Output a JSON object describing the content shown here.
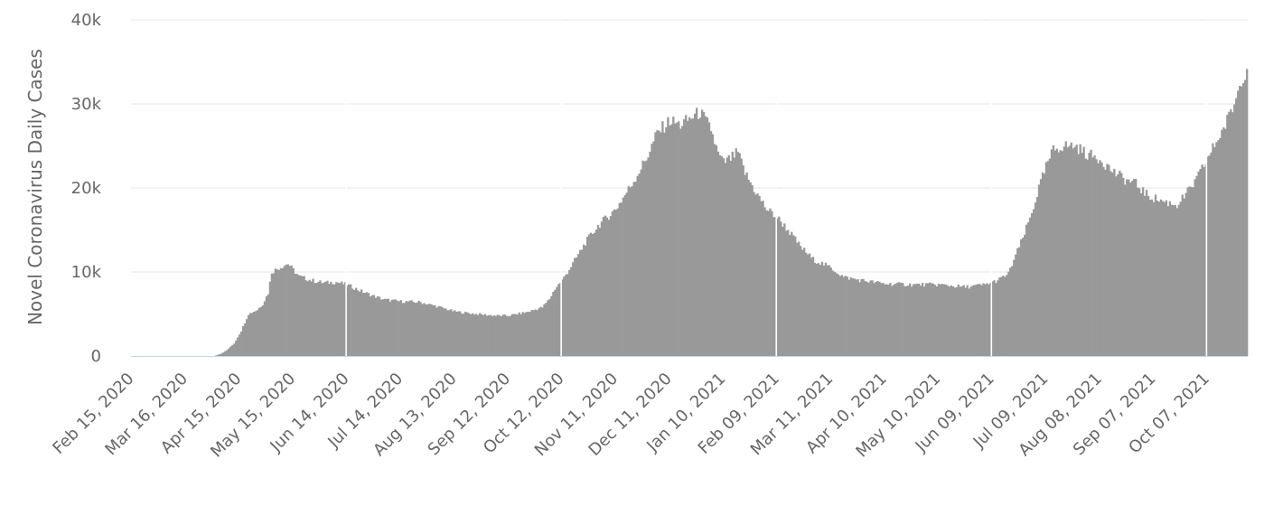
{
  "chart_data": {
    "type": "bar",
    "title": "",
    "xlabel": "",
    "ylabel": "Novel Coronavirus Daily Cases",
    "ylim": [
      0,
      40000
    ],
    "yticks": [
      {
        "value": 0,
        "label": "0"
      },
      {
        "value": 10000,
        "label": "10k"
      },
      {
        "value": 20000,
        "label": "20k"
      },
      {
        "value": 30000,
        "label": "30k"
      },
      {
        "value": 40000,
        "label": "40k"
      }
    ],
    "grid": true,
    "bar_color": "#999999",
    "gridline_color": "#e6e6e6",
    "axis_color": "#ccd6eb",
    "x_start": "2020-02-15",
    "x_end": "2021-10-29",
    "xticks": [
      "Feb 15, 2020",
      "Mar 16, 2020",
      "Apr 15, 2020",
      "May 15, 2020",
      "Jun 14, 2020",
      "Jul 14, 2020",
      "Aug 13, 2020",
      "Sep 12, 2020",
      "Oct 12, 2020",
      "Nov 11, 2020",
      "Dec 11, 2020",
      "Jan 10, 2021",
      "Feb 09, 2021",
      "Mar 11, 2021",
      "Apr 10, 2021",
      "May 10, 2021",
      "Jun 09, 2021",
      "Jul 09, 2021",
      "Aug 08, 2021",
      "Sep 07, 2021",
      "Oct 07, 2021"
    ],
    "series": [
      {
        "points": [
          [
            "2020-02-15",
            0
          ],
          [
            "2020-03-16",
            0
          ],
          [
            "2020-04-01",
            0
          ],
          [
            "2020-04-05",
            300
          ],
          [
            "2020-04-08",
            700
          ],
          [
            "2020-04-12",
            1500
          ],
          [
            "2020-04-16",
            3000
          ],
          [
            "2020-04-20",
            5000
          ],
          [
            "2020-04-25",
            5500
          ],
          [
            "2020-04-28",
            6200
          ],
          [
            "2020-05-01",
            7500
          ],
          [
            "2020-05-03",
            10000
          ],
          [
            "2020-05-08",
            10600
          ],
          [
            "2020-05-12",
            11000
          ],
          [
            "2020-05-18",
            9500
          ],
          [
            "2020-05-25",
            9000
          ],
          [
            "2020-06-01",
            8700
          ],
          [
            "2020-06-08",
            8800
          ],
          [
            "2020-06-14",
            8500
          ],
          [
            "2020-06-21",
            7800
          ],
          [
            "2020-06-28",
            7200
          ],
          [
            "2020-07-05",
            6700
          ],
          [
            "2020-07-14",
            6500
          ],
          [
            "2020-07-25",
            6400
          ],
          [
            "2020-08-05",
            5800
          ],
          [
            "2020-08-13",
            5300
          ],
          [
            "2020-08-25",
            5000
          ],
          [
            "2020-09-05",
            4800
          ],
          [
            "2020-09-12",
            4800
          ],
          [
            "2020-09-22",
            5200
          ],
          [
            "2020-10-01",
            5800
          ],
          [
            "2020-10-05",
            6800
          ],
          [
            "2020-10-08",
            8000
          ],
          [
            "2020-10-12",
            9000
          ],
          [
            "2020-10-18",
            11000
          ],
          [
            "2020-10-25",
            13500
          ],
          [
            "2020-11-01",
            15500
          ],
          [
            "2020-11-11",
            17500
          ],
          [
            "2020-11-20",
            20500
          ],
          [
            "2020-11-28",
            23500
          ],
          [
            "2020-12-04",
            26500
          ],
          [
            "2020-12-11",
            28000
          ],
          [
            "2020-12-17",
            27500
          ],
          [
            "2020-12-24",
            28500
          ],
          [
            "2020-12-28",
            29000
          ],
          [
            "2021-01-03",
            27000
          ],
          [
            "2021-01-07",
            24000
          ],
          [
            "2021-01-10",
            23000
          ],
          [
            "2021-01-14",
            23500
          ],
          [
            "2021-01-18",
            24200
          ],
          [
            "2021-01-22",
            21800
          ],
          [
            "2021-01-28",
            19500
          ],
          [
            "2021-02-03",
            17500
          ],
          [
            "2021-02-09",
            16500
          ],
          [
            "2021-02-15",
            15000
          ],
          [
            "2021-02-22",
            13000
          ],
          [
            "2021-03-01",
            11500
          ],
          [
            "2021-03-11",
            10500
          ],
          [
            "2021-03-18",
            9400
          ],
          [
            "2021-03-28",
            9000
          ],
          [
            "2021-04-10",
            8600
          ],
          [
            "2021-04-25",
            8500
          ],
          [
            "2021-05-10",
            8500
          ],
          [
            "2021-05-25",
            8200
          ],
          [
            "2021-06-05",
            8500
          ],
          [
            "2021-06-12",
            9000
          ],
          [
            "2021-06-18",
            9800
          ],
          [
            "2021-06-22",
            12000
          ],
          [
            "2021-06-26",
            14000
          ],
          [
            "2021-07-01",
            17000
          ],
          [
            "2021-07-05",
            20000
          ],
          [
            "2021-07-09",
            22500
          ],
          [
            "2021-07-13",
            24500
          ],
          [
            "2021-07-18",
            25000
          ],
          [
            "2021-07-25",
            25000
          ],
          [
            "2021-08-01",
            24000
          ],
          [
            "2021-08-08",
            23500
          ],
          [
            "2021-08-15",
            22000
          ],
          [
            "2021-08-22",
            21000
          ],
          [
            "2021-08-28",
            20500
          ],
          [
            "2021-09-03",
            19200
          ],
          [
            "2021-09-07",
            18800
          ],
          [
            "2021-09-14",
            18300
          ],
          [
            "2021-09-20",
            18000
          ],
          [
            "2021-09-25",
            19200
          ],
          [
            "2021-10-01",
            21000
          ],
          [
            "2021-10-07",
            23500
          ],
          [
            "2021-10-12",
            25500
          ],
          [
            "2021-10-17",
            27500
          ],
          [
            "2021-10-22",
            30000
          ],
          [
            "2021-10-26",
            33000
          ],
          [
            "2021-10-29",
            34200
          ]
        ]
      }
    ]
  }
}
